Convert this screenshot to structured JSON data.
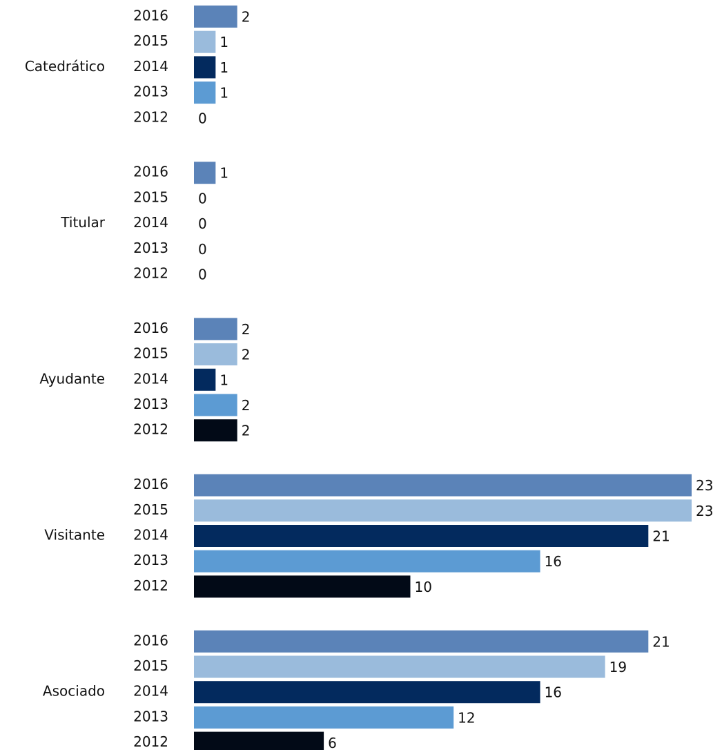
{
  "chart_data": {
    "type": "bar",
    "orientation": "horizontal",
    "categories": [
      "Catedrático",
      "Titular",
      "Ayudante",
      "Visitante",
      "Asociado"
    ],
    "series": [
      {
        "name": "2016",
        "color": "#5b83b8",
        "values": [
          2,
          1,
          2,
          23,
          21
        ]
      },
      {
        "name": "2015",
        "color": "#9abbdc",
        "values": [
          1,
          0,
          2,
          23,
          19
        ]
      },
      {
        "name": "2014",
        "color": "#032a5e",
        "values": [
          1,
          0,
          1,
          21,
          16
        ]
      },
      {
        "name": "2013",
        "color": "#5c9bd3",
        "values": [
          1,
          0,
          2,
          16,
          12
        ]
      },
      {
        "name": "2012",
        "color": "#020a17",
        "values": [
          0,
          0,
          2,
          10,
          6
        ]
      }
    ]
  }
}
